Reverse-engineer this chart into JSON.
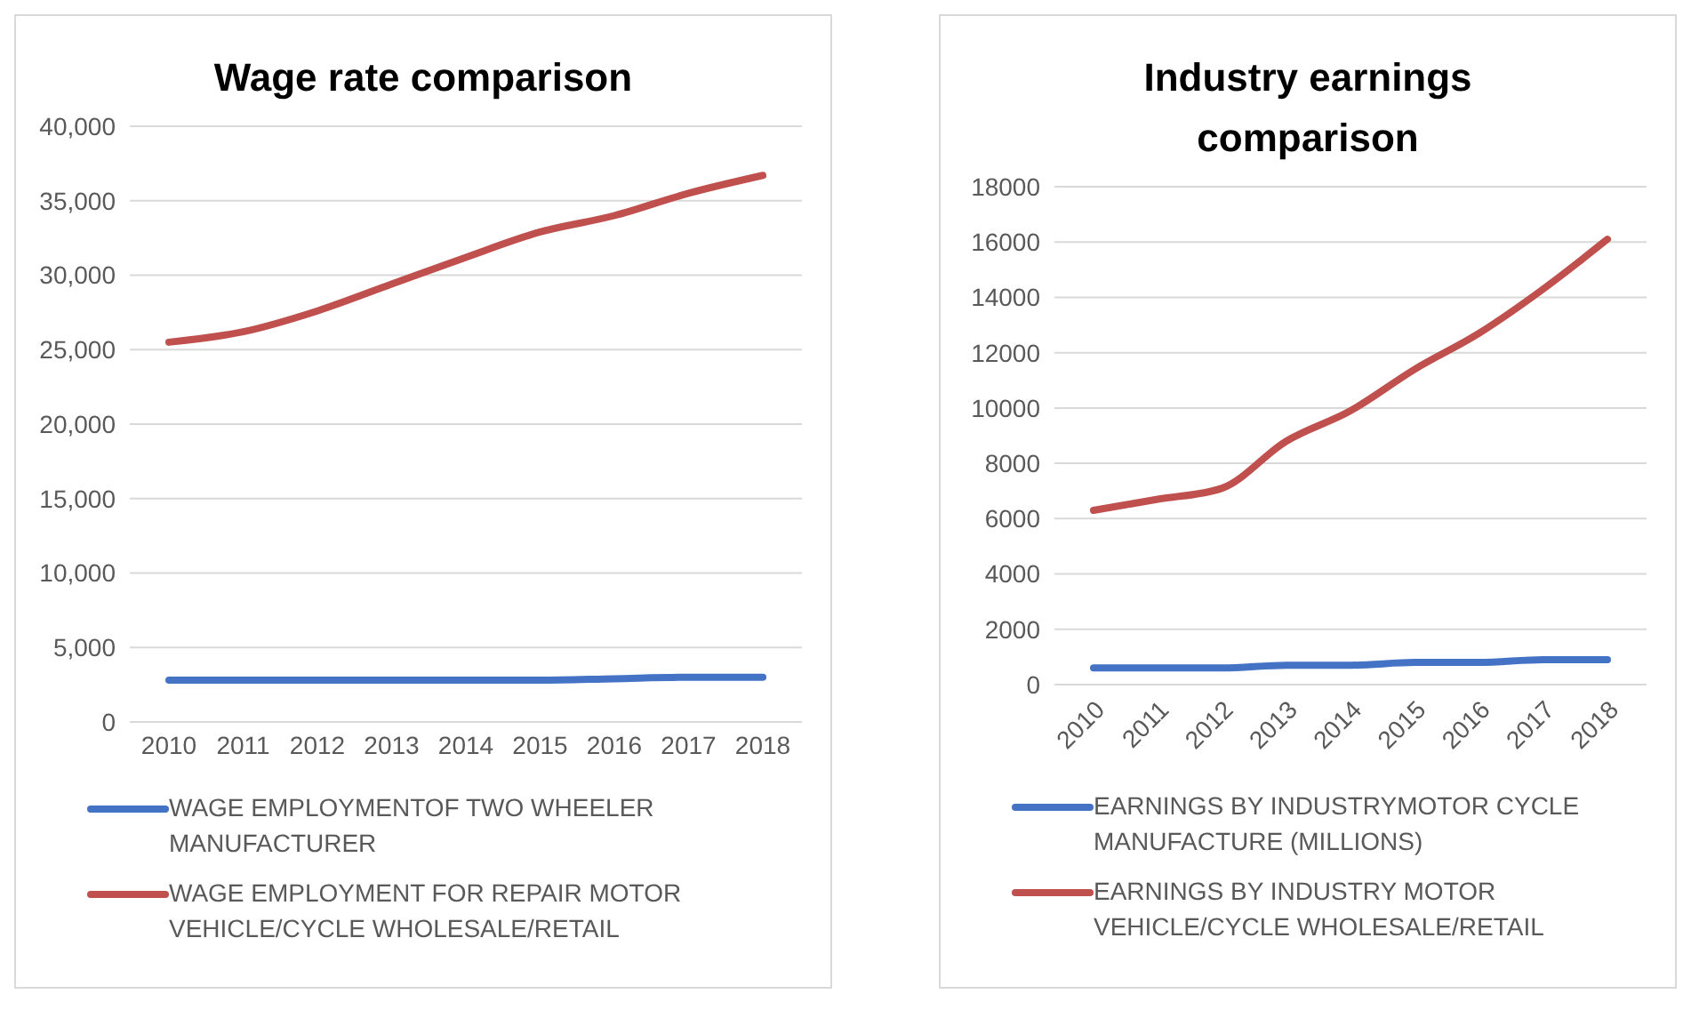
{
  "chart_data": [
    {
      "type": "line",
      "title": "Wage rate comparison",
      "categories": [
        "2010",
        "2011",
        "2012",
        "2013",
        "2014",
        "2015",
        "2016",
        "2017",
        "2018"
      ],
      "series": [
        {
          "name": "WAGE EMPLOYMENTOF TWO WHEELER MANUFACTURER",
          "color": "#4472c4",
          "values": [
            2800,
            2800,
            2800,
            2800,
            2800,
            2800,
            2900,
            3000,
            3000
          ]
        },
        {
          "name": "WAGE EMPLOYMENT FOR REPAIR MOTOR VEHICLE/CYCLE WHOLESALE/RETAIL",
          "color": "#c0504d",
          "values": [
            25500,
            26200,
            27600,
            29400,
            31200,
            32900,
            34000,
            35500,
            36700
          ]
        }
      ],
      "ylim": [
        0,
        40000
      ],
      "yticks": [
        {
          "value": 0,
          "label": "0"
        },
        {
          "value": 5000,
          "label": "5,000"
        },
        {
          "value": 10000,
          "label": "10,000"
        },
        {
          "value": 15000,
          "label": "15,000"
        },
        {
          "value": 20000,
          "label": "20,000"
        },
        {
          "value": 25000,
          "label": "25,000"
        },
        {
          "value": 30000,
          "label": "30,000"
        },
        {
          "value": 35000,
          "label": "35,000"
        },
        {
          "value": 40000,
          "label": "40,000"
        }
      ],
      "grid": "y",
      "legend": "bottom",
      "marker": "none",
      "line_style": "solid"
    },
    {
      "type": "line",
      "title": "Industry earnings comparison",
      "categories": [
        "2010",
        "2011",
        "2012",
        "2013",
        "2014",
        "2015",
        "2016",
        "2017",
        "2018"
      ],
      "series": [
        {
          "name": "EARNINGS BY INDUSTRYMOTOR CYCLE MANUFACTURE (MILLIONS)",
          "color": "#4472c4",
          "values": [
            600,
            600,
            600,
            700,
            700,
            800,
            800,
            900,
            900
          ]
        },
        {
          "name": "EARNINGS BY INDUSTRY MOTOR VEHICLE/CYCLE WHOLESALE/RETAIL",
          "color": "#c0504d",
          "values": [
            6300,
            6700,
            7100,
            8800,
            9900,
            11400,
            12700,
            14300,
            16100
          ]
        }
      ],
      "ylim": [
        0,
        18000
      ],
      "yticks": [
        0,
        2000,
        4000,
        6000,
        8000,
        10000,
        12000,
        14000,
        16000,
        18000
      ],
      "grid": "y",
      "legend": "bottom",
      "marker": "none",
      "line_style": "solid"
    }
  ]
}
